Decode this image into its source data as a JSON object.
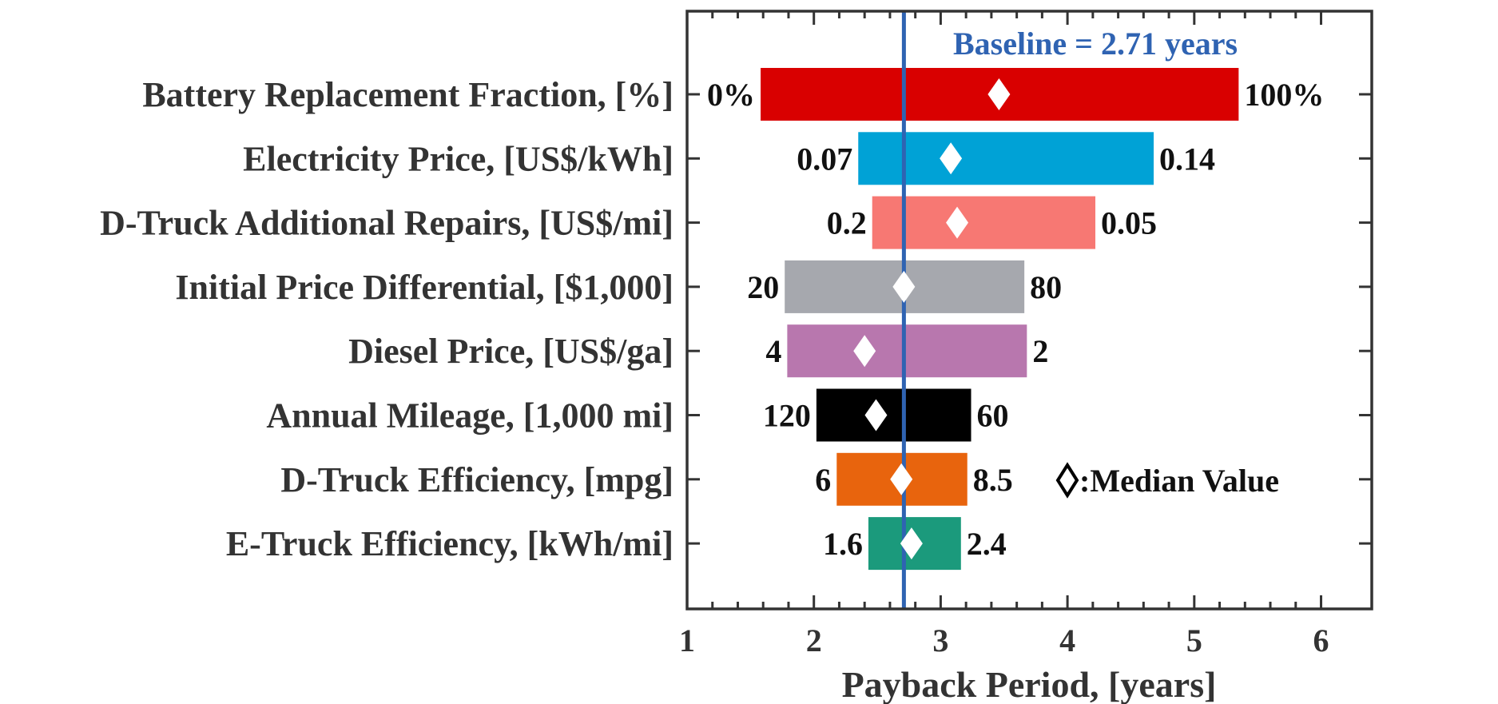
{
  "chart_data": {
    "type": "bar",
    "orientation": "horizontal",
    "subtype": "tornado",
    "xlabel": "Payback Period, [years]",
    "ylabel": "",
    "xlim": [
      1,
      6.4
    ],
    "xticks": [
      "1",
      "2",
      "3",
      "4",
      "5",
      "6"
    ],
    "baseline": {
      "value": 2.71,
      "label": "Baseline = 2.71 years",
      "color": "#2f63b2"
    },
    "legend": {
      "symbol": "◇",
      "text": ":Median Value"
    },
    "categories": [
      {
        "name": "Battery Replacement Fraction, [%]",
        "low": 1.58,
        "high": 5.35,
        "median": 3.46,
        "left_label": "0%",
        "right_label": "100%",
        "color": "#d90000"
      },
      {
        "name": "Electricity Price, [US$/kWh]",
        "low": 2.35,
        "high": 4.68,
        "median": 3.08,
        "left_label": "0.07",
        "right_label": "0.14",
        "color": "#00a2d6"
      },
      {
        "name": "D-Truck Additional Repairs, [US$/mi]",
        "low": 2.46,
        "high": 4.22,
        "median": 3.13,
        "left_label": "0.2",
        "right_label": "0.05",
        "color": "#f77873"
      },
      {
        "name": "Initial Price Differential, [$1,000]",
        "low": 1.77,
        "high": 3.66,
        "median": 2.71,
        "left_label": "20",
        "right_label": "80",
        "color": "#a6a8ae"
      },
      {
        "name": "Diesel Price, [US$/ga]",
        "low": 1.79,
        "high": 3.68,
        "median": 2.4,
        "left_label": "4",
        "right_label": "2",
        "color": "#b877ae"
      },
      {
        "name": "Annual Mileage, [1,000 mi]",
        "low": 2.02,
        "high": 3.24,
        "median": 2.49,
        "left_label": "120",
        "right_label": "60",
        "color": "#000000"
      },
      {
        "name": "D-Truck Efficiency, [mpg]",
        "low": 2.18,
        "high": 3.21,
        "median": 2.69,
        "left_label": "6",
        "right_label": "8.5",
        "color": "#e8640d"
      },
      {
        "name": "E-Truck Efficiency, [kWh/mi]",
        "low": 2.43,
        "high": 3.16,
        "median": 2.77,
        "left_label": "1.6",
        "right_label": "2.4",
        "color": "#1b9a7c"
      }
    ]
  }
}
